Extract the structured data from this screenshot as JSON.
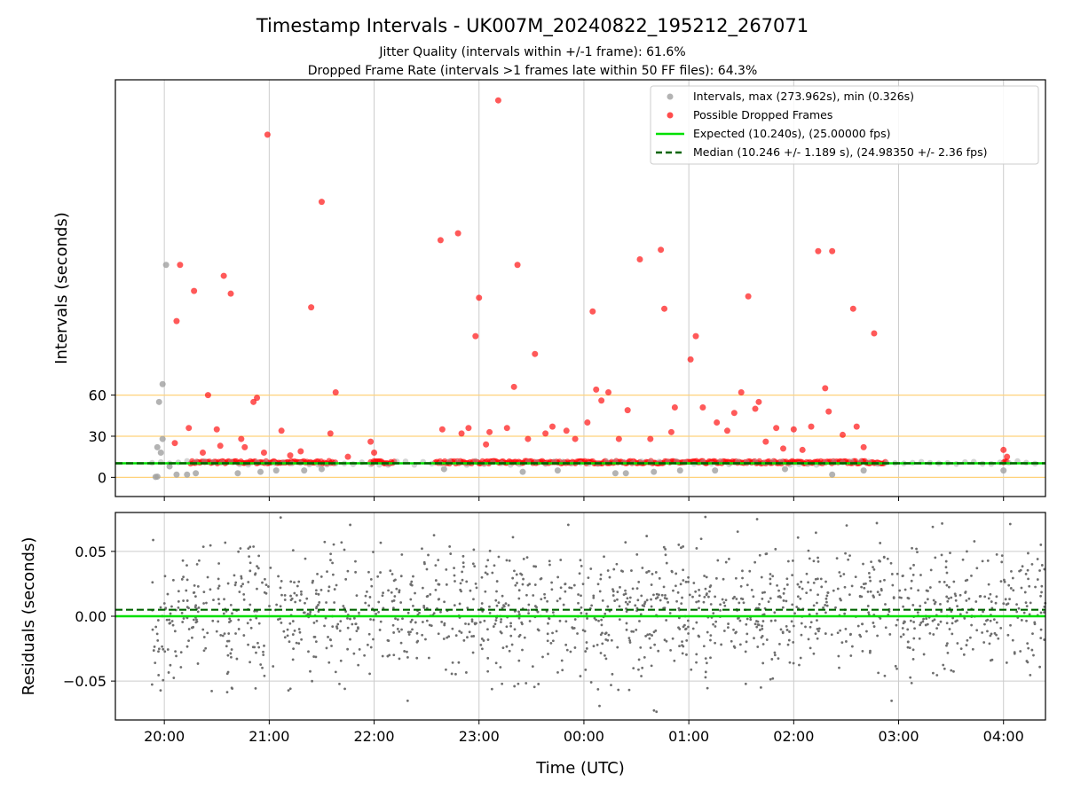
{
  "figure": {
    "title": "Timestamp Intervals - UK007M_20240822_195212_267071",
    "subtitle_1": "Jitter Quality (intervals within +/-1 frame): 61.6%",
    "subtitle_2": "Dropped Frame Rate (intervals >1 frames late within 50 FF files): 64.3%"
  },
  "colors": {
    "intervals": "#a0a0a0",
    "dropped": "#ff0000",
    "expected": "#00e000",
    "median": "#006400",
    "threshold_lines": "#ffd27a",
    "grid": "#cccccc",
    "residuals": "#6e6e6e"
  },
  "chart_data": [
    {
      "type": "scatter",
      "ylabel": "Intervals (seconds)",
      "xlim": [
        "19:32",
        "04:24"
      ],
      "ylim": [
        -14,
        290
      ],
      "yticks": [
        0,
        30,
        60
      ],
      "xtick_labels": [
        "20:00",
        "21:00",
        "22:00",
        "23:00",
        "00:00",
        "01:00",
        "02:00",
        "03:00",
        "04:00"
      ],
      "grid": "vertical",
      "legend_position": "top-right",
      "legend": [
        "Intervals, max (273.962s), min (0.326s)",
        "Possible Dropped Frames",
        "Expected (10.240s), (25.00000 fps)",
        "Median (10.246 +/- 1.189 s), (24.98350 +/- 2.36 fps)"
      ],
      "expected_value": 10.24,
      "median_value": 10.246,
      "threshold_lines": [
        0,
        30,
        60
      ],
      "series": [
        {
          "name": "Intervals, max (273.962s), min (0.326s)",
          "points": [
            [
              "19:55",
              0.3
            ],
            [
              "19:56",
              0.5
            ],
            [
              "19:56",
              22
            ],
            [
              "19:57",
              55
            ],
            [
              "19:58",
              18
            ],
            [
              "19:59",
              68
            ],
            [
              "19:59",
              28
            ],
            [
              "20:01",
              155
            ],
            [
              "20:03",
              8
            ],
            [
              "20:07",
              2
            ],
            [
              "20:13",
              2
            ],
            [
              "20:18",
              3
            ],
            [
              "20:42",
              3
            ],
            [
              "20:55",
              4
            ],
            [
              "21:04",
              5
            ],
            [
              "21:20",
              5
            ],
            [
              "21:30",
              6
            ],
            [
              "22:40",
              6
            ],
            [
              "23:25",
              4
            ],
            [
              "23:45",
              5
            ],
            [
              "00:18",
              3
            ],
            [
              "00:24",
              3
            ],
            [
              "00:40",
              4
            ],
            [
              "00:55",
              5
            ],
            [
              "01:15",
              5
            ],
            [
              "01:55",
              6
            ],
            [
              "02:22",
              2
            ],
            [
              "02:40",
              5
            ],
            [
              "04:00",
              5
            ]
          ]
        },
        {
          "name": "Possible Dropped Frames",
          "points": [
            [
              "20:06",
              25
            ],
            [
              "20:07",
              114
            ],
            [
              "20:09",
              155
            ],
            [
              "20:14",
              36
            ],
            [
              "20:17",
              136
            ],
            [
              "20:22",
              18
            ],
            [
              "20:25",
              60
            ],
            [
              "20:30",
              35
            ],
            [
              "20:32",
              23
            ],
            [
              "20:34",
              147
            ],
            [
              "20:38",
              134
            ],
            [
              "20:44",
              28
            ],
            [
              "20:46",
              22
            ],
            [
              "20:51",
              55
            ],
            [
              "20:53",
              58
            ],
            [
              "20:57",
              18
            ],
            [
              "20:59",
              250
            ],
            [
              "21:07",
              34
            ],
            [
              "21:12",
              16
            ],
            [
              "21:18",
              19
            ],
            [
              "21:24",
              124
            ],
            [
              "21:30",
              201
            ],
            [
              "21:35",
              32
            ],
            [
              "21:38",
              62
            ],
            [
              "21:45",
              15
            ],
            [
              "21:58",
              26
            ],
            [
              "22:00",
              18
            ],
            [
              "22:38",
              173
            ],
            [
              "22:39",
              35
            ],
            [
              "22:48",
              178
            ],
            [
              "22:50",
              32
            ],
            [
              "22:54",
              36
            ],
            [
              "22:58",
              103
            ],
            [
              "23:00",
              131
            ],
            [
              "23:04",
              24
            ],
            [
              "23:06",
              33
            ],
            [
              "23:11",
              275
            ],
            [
              "23:16",
              36
            ],
            [
              "23:20",
              66
            ],
            [
              "23:22",
              155
            ],
            [
              "23:28",
              28
            ],
            [
              "23:32",
              90
            ],
            [
              "23:38",
              32
            ],
            [
              "23:42",
              37
            ],
            [
              "23:50",
              34
            ],
            [
              "23:55",
              28
            ],
            [
              "00:02",
              40
            ],
            [
              "00:05",
              121
            ],
            [
              "00:07",
              64
            ],
            [
              "00:10",
              56
            ],
            [
              "00:14",
              62
            ],
            [
              "00:20",
              28
            ],
            [
              "00:25",
              49
            ],
            [
              "00:32",
              159
            ],
            [
              "00:38",
              28
            ],
            [
              "00:44",
              166
            ],
            [
              "00:46",
              123
            ],
            [
              "00:50",
              33
            ],
            [
              "00:52",
              51
            ],
            [
              "01:01",
              86
            ],
            [
              "01:04",
              103
            ],
            [
              "01:08",
              51
            ],
            [
              "01:16",
              40
            ],
            [
              "01:22",
              34
            ],
            [
              "01:26",
              47
            ],
            [
              "01:30",
              62
            ],
            [
              "01:34",
              132
            ],
            [
              "01:38",
              50
            ],
            [
              "01:40",
              55
            ],
            [
              "01:44",
              26
            ],
            [
              "01:50",
              36
            ],
            [
              "01:54",
              21
            ],
            [
              "02:00",
              35
            ],
            [
              "02:05",
              20
            ],
            [
              "02:10",
              37
            ],
            [
              "02:14",
              165
            ],
            [
              "02:18",
              65
            ],
            [
              "02:20",
              48
            ],
            [
              "02:22",
              165
            ],
            [
              "02:28",
              31
            ],
            [
              "02:34",
              123
            ],
            [
              "02:36",
              37
            ],
            [
              "02:40",
              22
            ],
            [
              "02:46",
              105
            ],
            [
              "04:00",
              20
            ],
            [
              "04:02",
              15
            ]
          ],
          "dense_band": [
            10,
            12
          ],
          "dense_ranges": [
            [
              "20:15",
              "21:38"
            ],
            [
              "21:58",
              "22:12"
            ],
            [
              "22:35",
              "02:53"
            ],
            [
              "04:00",
              "04:02"
            ]
          ]
        },
        {
          "name": "Expected (10.240s), (25.00000 fps)",
          "y": 10.24
        },
        {
          "name": "Median (10.246 +/- 1.189 s), (24.98350 +/- 2.36 fps)",
          "y": 10.246
        }
      ]
    },
    {
      "type": "scatter",
      "xlabel": "Time (UTC)",
      "ylabel": "Residuals (seconds)",
      "xlim": [
        "19:32",
        "04:24"
      ],
      "ylim": [
        -0.08,
        0.08
      ],
      "yticks": [
        -0.05,
        0.0,
        0.05
      ],
      "ytick_labels": [
        "−0.05",
        "0.00",
        "0.05"
      ],
      "xtick_labels": [
        "20:00",
        "21:00",
        "22:00",
        "23:00",
        "00:00",
        "01:00",
        "02:00",
        "03:00",
        "04:00"
      ],
      "grid": "both",
      "expected_value": 0.0,
      "median_value": 0.005,
      "residual_spread_sd": 0.025,
      "residual_point_count": 1500
    }
  ]
}
